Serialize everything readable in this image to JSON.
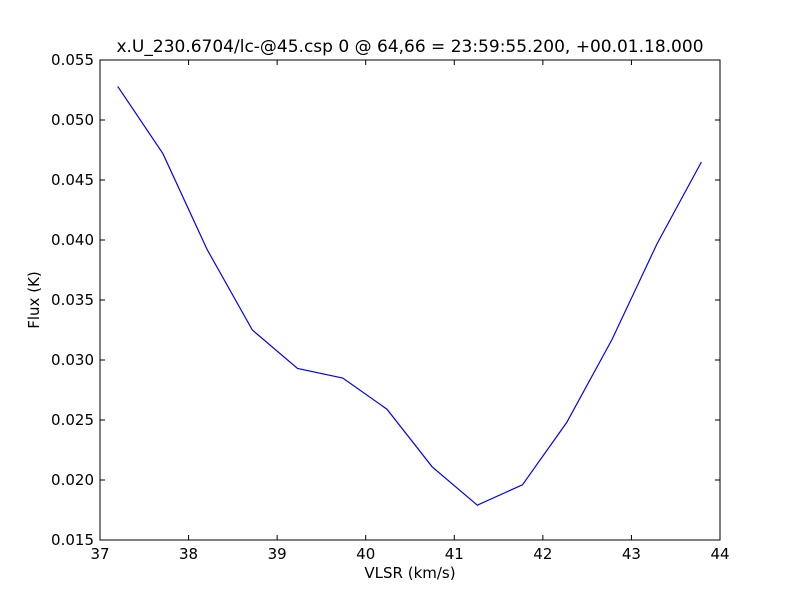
{
  "chart_data": {
    "type": "line",
    "title": "x.U_230.6704/lc-@45.csp 0 @ 64,66 = 23:59:55.200, +00.01.18.000",
    "x_label": "VLSR (km/s)",
    "y_label": "Flux (K)",
    "x": [
      37.2,
      37.71,
      38.21,
      38.72,
      39.23,
      39.74,
      40.24,
      40.75,
      41.26,
      41.77,
      42.27,
      42.78,
      43.29,
      43.79
    ],
    "series": [
      {
        "name": "Flux",
        "color": "#0000ff",
        "values": [
          0.0528,
          0.0472,
          0.0392,
          0.0325,
          0.0293,
          0.0285,
          0.0259,
          0.0211,
          0.0179,
          0.0196,
          0.0248,
          0.0317,
          0.0397,
          0.0465
        ]
      }
    ],
    "xlim": [
      37,
      44
    ],
    "xticks": [
      37,
      38,
      39,
      40,
      41,
      42,
      43,
      44
    ],
    "ylim": [
      0.015,
      0.055
    ],
    "yticks": [
      0.015,
      {
        "value": 0.02,
        "label": "0.020"
      },
      0.025,
      {
        "value": 0.03,
        "label": "0.030"
      },
      0.035,
      {
        "value": 0.04,
        "label": "0.040"
      },
      0.045,
      {
        "value": 0.05,
        "label": "0.050"
      },
      0.055
    ],
    "grid": false
  }
}
